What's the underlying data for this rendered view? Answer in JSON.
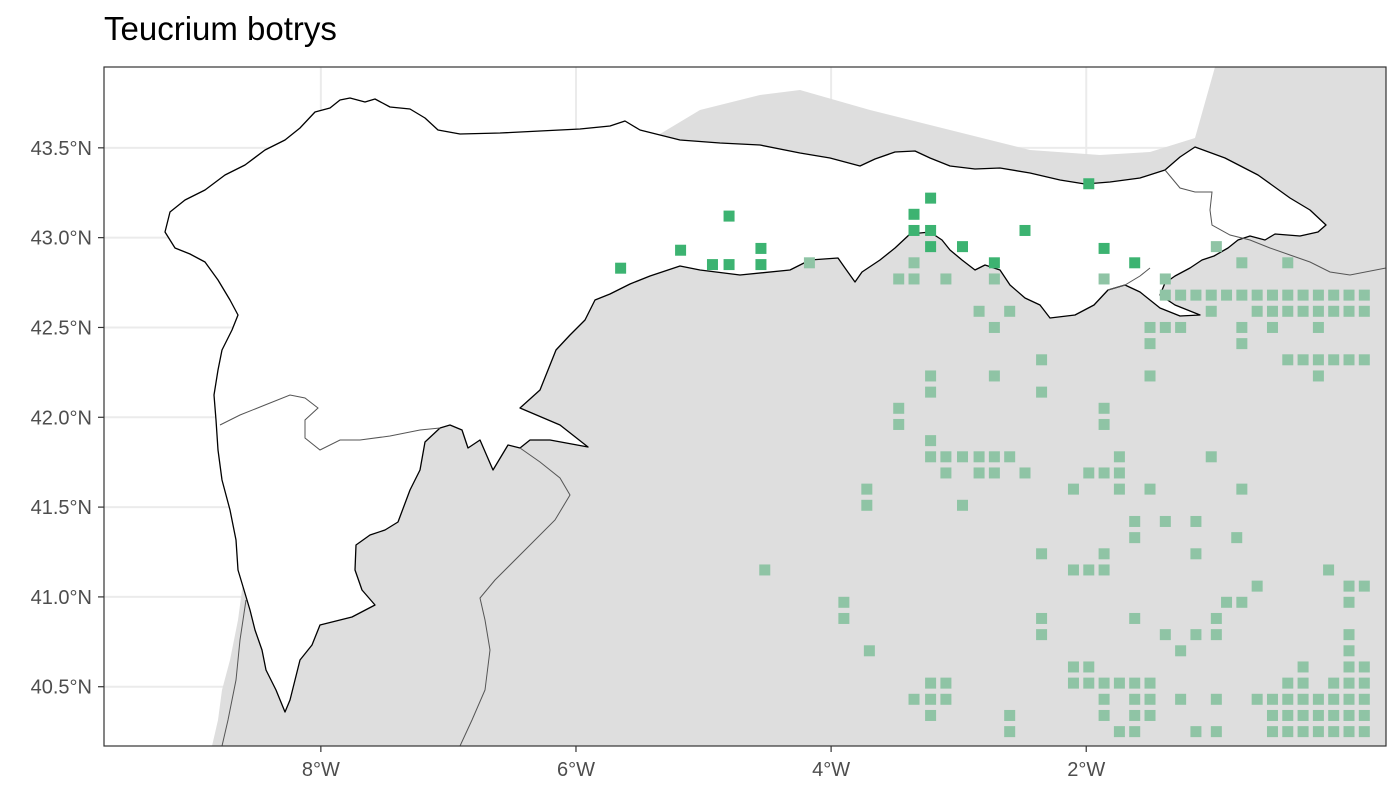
{
  "title": "Teucrium botrys",
  "colors": {
    "background": "#ffffff",
    "outside_area": "#dedede",
    "study_area": "#ffffff",
    "study_border": "#000000",
    "admin_border": "#555555",
    "grid": "#ebebeb",
    "panel_border": "#333333",
    "presence_in_area": "#3cb371",
    "presence_outside": "#8fc4a5"
  },
  "chart_data": {
    "type": "scatter",
    "title": "Teucrium botrys",
    "xlabel": "",
    "ylabel": "",
    "xlim": [
      -9.7,
      0.35
    ],
    "ylim": [
      40.17,
      43.95
    ],
    "grid": true,
    "x_ticks": [
      {
        "value": -8,
        "label": "8°W"
      },
      {
        "value": -6,
        "label": "6°W"
      },
      {
        "value": -4,
        "label": "4°W"
      },
      {
        "value": -2,
        "label": "2°W"
      }
    ],
    "y_ticks": [
      {
        "value": 43.5,
        "label": "43.5°N"
      },
      {
        "value": 43.0,
        "label": "43.0°N"
      },
      {
        "value": 42.5,
        "label": "42.5°N"
      },
      {
        "value": 42.0,
        "label": "42.0°N"
      },
      {
        "value": 41.5,
        "label": "41.5°N"
      },
      {
        "value": 41.0,
        "label": "41.0°N"
      },
      {
        "value": 40.5,
        "label": "40.5°N"
      }
    ],
    "series": [
      {
        "points": [
          [
            -5.65,
            42.83
          ],
          [
            -5.18,
            42.93
          ],
          [
            -4.93,
            42.85
          ],
          [
            -4.8,
            42.85
          ],
          [
            -4.8,
            43.12
          ],
          [
            -4.55,
            42.94
          ],
          [
            -4.55,
            42.85
          ],
          [
            -3.35,
            43.13
          ],
          [
            -3.35,
            43.04
          ],
          [
            -3.22,
            43.22
          ],
          [
            -3.22,
            43.04
          ],
          [
            -3.22,
            42.95
          ],
          [
            -2.97,
            42.95
          ],
          [
            -2.72,
            42.86
          ],
          [
            -2.48,
            43.04
          ],
          [
            -1.98,
            43.3
          ],
          [
            -1.86,
            42.94
          ],
          [
            -1.62,
            42.86
          ]
        ]
      },
      {
        "points": [
          [
            -4.17,
            42.86
          ],
          [
            -3.47,
            42.77
          ],
          [
            -3.35,
            42.86
          ],
          [
            -3.35,
            42.77
          ],
          [
            -3.1,
            42.77
          ],
          [
            -2.72,
            42.77
          ],
          [
            -2.84,
            42.59
          ],
          [
            -2.72,
            42.5
          ],
          [
            -2.6,
            42.59
          ],
          [
            -2.72,
            42.23
          ],
          [
            -2.35,
            42.32
          ],
          [
            -2.35,
            42.14
          ],
          [
            -3.22,
            42.23
          ],
          [
            -3.22,
            42.14
          ],
          [
            -3.47,
            42.05
          ],
          [
            -3.47,
            41.96
          ],
          [
            -3.22,
            41.87
          ],
          [
            -3.22,
            41.78
          ],
          [
            -3.1,
            41.78
          ],
          [
            -2.97,
            41.78
          ],
          [
            -2.84,
            41.78
          ],
          [
            -2.72,
            41.78
          ],
          [
            -2.6,
            41.78
          ],
          [
            -3.1,
            41.69
          ],
          [
            -2.84,
            41.69
          ],
          [
            -2.72,
            41.69
          ],
          [
            -2.48,
            41.69
          ],
          [
            -2.97,
            41.51
          ],
          [
            -3.72,
            41.6
          ],
          [
            -3.72,
            41.51
          ],
          [
            -2.1,
            41.6
          ],
          [
            -1.98,
            41.69
          ],
          [
            -1.86,
            41.69
          ],
          [
            -1.74,
            41.69
          ],
          [
            -1.74,
            41.78
          ],
          [
            -1.74,
            41.6
          ],
          [
            -1.5,
            41.6
          ],
          [
            -1.86,
            42.05
          ],
          [
            -1.86,
            41.96
          ],
          [
            -1.86,
            42.77
          ],
          [
            -1.38,
            42.77
          ],
          [
            -1.38,
            42.68
          ],
          [
            -1.26,
            42.68
          ],
          [
            -1.14,
            42.68
          ],
          [
            -1.02,
            42.68
          ],
          [
            -0.9,
            42.68
          ],
          [
            -0.78,
            42.68
          ],
          [
            -0.66,
            42.68
          ],
          [
            -0.54,
            42.68
          ],
          [
            -0.42,
            42.68
          ],
          [
            -0.3,
            42.68
          ],
          [
            -0.18,
            42.68
          ],
          [
            -0.06,
            42.68
          ],
          [
            0.06,
            42.68
          ],
          [
            0.18,
            42.68
          ],
          [
            -1.5,
            42.5
          ],
          [
            -1.5,
            42.41
          ],
          [
            -1.38,
            42.5
          ],
          [
            -1.26,
            42.5
          ],
          [
            -1.5,
            42.23
          ],
          [
            -1.02,
            42.59
          ],
          [
            -0.78,
            42.5
          ],
          [
            -0.78,
            42.41
          ],
          [
            -0.66,
            42.59
          ],
          [
            -0.54,
            42.59
          ],
          [
            -0.54,
            42.5
          ],
          [
            -0.42,
            42.59
          ],
          [
            -0.3,
            42.59
          ],
          [
            -0.18,
            42.59
          ],
          [
            -0.06,
            42.59
          ],
          [
            0.06,
            42.59
          ],
          [
            0.18,
            42.59
          ],
          [
            -0.18,
            42.5
          ],
          [
            -0.42,
            42.32
          ],
          [
            -0.3,
            42.32
          ],
          [
            -0.18,
            42.32
          ],
          [
            -0.06,
            42.32
          ],
          [
            0.06,
            42.32
          ],
          [
            0.18,
            42.32
          ],
          [
            -0.18,
            42.23
          ],
          [
            -0.98,
            42.95
          ],
          [
            -0.78,
            42.86
          ],
          [
            -0.42,
            42.86
          ],
          [
            -1.02,
            41.78
          ],
          [
            -0.78,
            41.6
          ],
          [
            -1.62,
            41.42
          ],
          [
            -1.62,
            41.33
          ],
          [
            -1.38,
            41.42
          ],
          [
            -1.14,
            41.42
          ],
          [
            -1.14,
            41.24
          ],
          [
            -0.82,
            41.33
          ],
          [
            -2.35,
            41.24
          ],
          [
            -2.1,
            41.15
          ],
          [
            -1.98,
            41.15
          ],
          [
            -1.86,
            41.24
          ],
          [
            -1.86,
            41.15
          ],
          [
            -4.52,
            41.15
          ],
          [
            -3.9,
            40.97
          ],
          [
            -3.9,
            40.88
          ],
          [
            -3.7,
            40.7
          ],
          [
            -2.35,
            40.88
          ],
          [
            -2.35,
            40.79
          ],
          [
            -1.62,
            40.88
          ],
          [
            -1.38,
            40.79
          ],
          [
            -1.26,
            40.7
          ],
          [
            -1.14,
            40.79
          ],
          [
            -0.98,
            40.79
          ],
          [
            -0.98,
            40.88
          ],
          [
            -0.9,
            40.97
          ],
          [
            -0.78,
            40.97
          ],
          [
            -0.66,
            41.06
          ],
          [
            -0.1,
            41.15
          ],
          [
            0.06,
            41.06
          ],
          [
            0.18,
            41.06
          ],
          [
            0.06,
            40.97
          ],
          [
            0.06,
            40.79
          ],
          [
            0.06,
            40.7
          ],
          [
            0.06,
            40.61
          ],
          [
            0.18,
            40.61
          ],
          [
            0.18,
            40.52
          ],
          [
            0.18,
            40.43
          ],
          [
            0.18,
            40.34
          ],
          [
            0.18,
            40.25
          ],
          [
            0.06,
            40.25
          ],
          [
            0.06,
            40.34
          ],
          [
            0.06,
            40.43
          ],
          [
            0.06,
            40.52
          ],
          [
            -0.06,
            40.52
          ],
          [
            -0.06,
            40.43
          ],
          [
            -0.06,
            40.34
          ],
          [
            -0.06,
            40.25
          ],
          [
            -0.18,
            40.43
          ],
          [
            -0.18,
            40.34
          ],
          [
            -0.18,
            40.25
          ],
          [
            -0.3,
            40.52
          ],
          [
            -0.3,
            40.43
          ],
          [
            -0.3,
            40.34
          ],
          [
            -0.3,
            40.25
          ],
          [
            -0.3,
            40.61
          ],
          [
            -0.42,
            40.52
          ],
          [
            -0.42,
            40.43
          ],
          [
            -0.42,
            40.34
          ],
          [
            -0.42,
            40.25
          ],
          [
            -0.54,
            40.43
          ],
          [
            -0.54,
            40.34
          ],
          [
            -0.54,
            40.25
          ],
          [
            -0.66,
            40.43
          ],
          [
            -0.98,
            40.43
          ],
          [
            -0.98,
            40.25
          ],
          [
            -1.14,
            40.25
          ],
          [
            -1.26,
            40.43
          ],
          [
            -1.5,
            40.52
          ],
          [
            -1.5,
            40.43
          ],
          [
            -1.5,
            40.34
          ],
          [
            -1.62,
            40.52
          ],
          [
            -1.62,
            40.43
          ],
          [
            -1.62,
            40.34
          ],
          [
            -1.62,
            40.25
          ],
          [
            -1.74,
            40.52
          ],
          [
            -1.74,
            40.25
          ],
          [
            -1.86,
            40.52
          ],
          [
            -1.86,
            40.43
          ],
          [
            -1.86,
            40.34
          ],
          [
            -1.98,
            40.52
          ],
          [
            -1.98,
            40.61
          ],
          [
            -2.1,
            40.52
          ],
          [
            -2.1,
            40.61
          ],
          [
            -2.6,
            40.34
          ],
          [
            -2.6,
            40.25
          ],
          [
            -3.1,
            40.52
          ],
          [
            -3.1,
            40.43
          ],
          [
            -3.22,
            40.52
          ],
          [
            -3.22,
            40.43
          ],
          [
            -3.22,
            40.34
          ],
          [
            -3.35,
            40.43
          ]
        ]
      }
    ]
  }
}
